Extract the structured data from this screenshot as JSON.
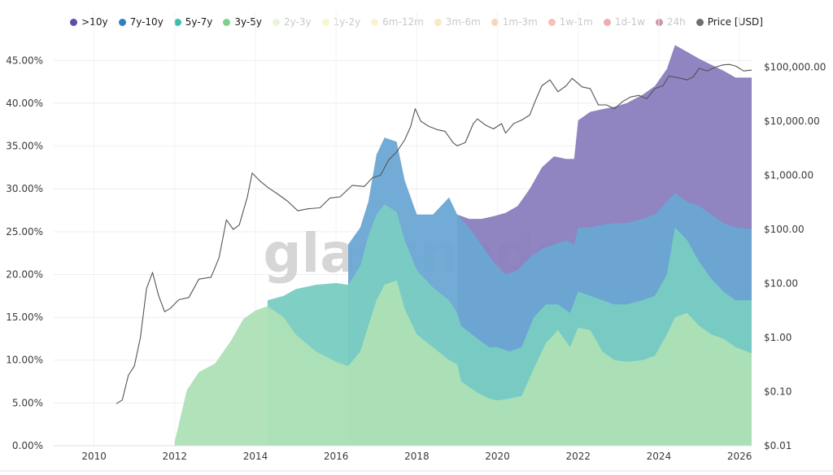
{
  "watermark": "glassnode",
  "legend": [
    {
      "label": ">10y",
      "color": "#5b4fa6",
      "active": true
    },
    {
      "label": "7y-10y",
      "color": "#2f80bf",
      "active": true
    },
    {
      "label": "5y-7y",
      "color": "#3dbfb0",
      "active": true
    },
    {
      "label": "3y-5y",
      "color": "#7fcf8f",
      "active": true
    },
    {
      "label": "2y-3y",
      "color": "#cfe8a8",
      "active": false
    },
    {
      "label": "1y-2y",
      "color": "#f1ee9a",
      "active": false
    },
    {
      "label": "6m-12m",
      "color": "#f6e3a0",
      "active": false
    },
    {
      "label": "3m-6m",
      "color": "#f5c97a",
      "active": false
    },
    {
      "label": "1m-3m",
      "color": "#f2a064",
      "active": false
    },
    {
      "label": "1w-1m",
      "color": "#e8735a",
      "active": false
    },
    {
      "label": "1d-1w",
      "color": "#d94a52",
      "active": false
    },
    {
      "label": "24h",
      "color": "#8c1232",
      "active": false
    },
    {
      "label": "Price [USD]",
      "color": "#6f6f6f",
      "active": true
    }
  ],
  "chart_data": {
    "type": "area",
    "stacked": true,
    "x_ticks": [
      "2010",
      "2012",
      "2014",
      "2016",
      "2018",
      "2020",
      "2022",
      "2024",
      "2026"
    ],
    "xlim": [
      2009.0,
      2026.3
    ],
    "y_left_ticks": [
      "0.00%",
      "5.00%",
      "10.00%",
      "15.00%",
      "20.00%",
      "25.00%",
      "30.00%",
      "35.00%",
      "40.00%",
      "45.00%"
    ],
    "ylim_left": [
      0,
      47.5
    ],
    "y_right_ticks": [
      "$0.01",
      "$0.10",
      "$1.00",
      "$10.00",
      "$100.00",
      "$1,000.00",
      "$10,000.00",
      "$100,000.00"
    ],
    "ylim_right": [
      0.01,
      330000
    ],
    "y_right_scale": "log",
    "grid": true,
    "legend_position": "top",
    "series": [
      {
        "name": "3y-5y",
        "color": "#aee0b6",
        "x": [
          2012.0,
          2012.3,
          2012.6,
          2013.0,
          2013.4,
          2013.7,
          2014.0,
          2014.3,
          2014.7,
          2015.0,
          2015.5,
          2016.0,
          2016.3,
          2016.6,
          2016.8,
          2017.0,
          2017.2,
          2017.5,
          2017.7,
          2018.0,
          2018.4,
          2018.8,
          2019.0,
          2019.1,
          2019.5,
          2019.8,
          2020.0,
          2020.3,
          2020.6,
          2020.9,
          2021.2,
          2021.5,
          2021.8,
          2022.0,
          2022.3,
          2022.6,
          2022.9,
          2023.2,
          2023.6,
          2023.9,
          2024.2,
          2024.4,
          2024.7,
          2025.0,
          2025.3,
          2025.6,
          2025.9,
          2026.3
        ],
        "values": [
          0.5,
          6.5,
          8.6,
          9.6,
          12.3,
          14.8,
          15.8,
          16.3,
          15.0,
          13.0,
          11.0,
          9.8,
          9.3,
          11.0,
          14.0,
          17.0,
          18.8,
          19.3,
          16.0,
          13.0,
          11.5,
          10.0,
          9.5,
          7.5,
          6.2,
          5.5,
          5.3,
          5.5,
          5.8,
          9.0,
          12.0,
          13.5,
          11.5,
          13.8,
          13.5,
          11.0,
          10.0,
          9.8,
          10.0,
          10.5,
          13.0,
          15.0,
          15.5,
          14.0,
          13.0,
          12.5,
          11.5,
          10.8
        ]
      },
      {
        "name": "5y-7y",
        "color": "#79ccc2",
        "x": [
          2014.3,
          2014.7,
          2015.0,
          2015.5,
          2016.0,
          2016.3,
          2016.6,
          2016.8,
          2017.0,
          2017.2,
          2017.5,
          2017.7,
          2018.0,
          2018.4,
          2018.8,
          2019.0,
          2019.1,
          2019.5,
          2019.8,
          2020.0,
          2020.3,
          2020.6,
          2020.9,
          2021.2,
          2021.5,
          2021.8,
          2022.0,
          2022.3,
          2022.6,
          2022.9,
          2023.2,
          2023.6,
          2023.9,
          2024.2,
          2024.4,
          2024.7,
          2025.0,
          2025.3,
          2025.6,
          2025.9,
          2026.3
        ],
        "values": [
          17.0,
          17.5,
          18.3,
          18.8,
          19.0,
          18.8,
          21.0,
          24.5,
          27.0,
          28.2,
          27.3,
          24.0,
          20.5,
          18.5,
          17.0,
          15.5,
          14.0,
          12.5,
          11.5,
          11.5,
          11.0,
          11.5,
          15.0,
          16.5,
          16.5,
          15.5,
          18.0,
          17.5,
          17.0,
          16.5,
          16.5,
          17.0,
          17.5,
          20.0,
          25.5,
          24.0,
          21.5,
          19.5,
          18.0,
          17.0,
          17.0
        ]
      },
      {
        "name": "7y-10y",
        "color": "#6aa7d3",
        "x": [
          2016.3,
          2016.6,
          2016.8,
          2017.0,
          2017.2,
          2017.5,
          2017.7,
          2018.0,
          2018.4,
          2018.8,
          2019.0,
          2019.3,
          2019.6,
          2019.9,
          2020.2,
          2020.5,
          2020.8,
          2021.1,
          2021.4,
          2021.7,
          2021.9,
          2022.0,
          2022.3,
          2022.6,
          2022.9,
          2023.2,
          2023.6,
          2023.9,
          2024.2,
          2024.4,
          2024.7,
          2025.0,
          2025.3,
          2025.6,
          2025.9,
          2026.3
        ],
        "values": [
          23.5,
          25.5,
          28.5,
          34.0,
          36.0,
          35.5,
          31.0,
          27.0,
          27.0,
          29.0,
          27.0,
          25.5,
          23.5,
          21.5,
          20.0,
          20.5,
          22.0,
          23.0,
          23.5,
          24.0,
          23.5,
          25.5,
          25.5,
          25.8,
          26.0,
          26.0,
          26.5,
          27.0,
          28.5,
          29.5,
          28.5,
          28.0,
          27.0,
          26.0,
          25.5,
          25.3
        ]
      },
      {
        "name": ">10y",
        "color": "#8a7dbe",
        "x": [
          2019.0,
          2019.3,
          2019.6,
          2019.9,
          2020.2,
          2020.5,
          2020.8,
          2021.1,
          2021.4,
          2021.7,
          2021.9,
          2022.0,
          2022.3,
          2022.6,
          2022.9,
          2023.2,
          2023.6,
          2023.9,
          2024.2,
          2024.4,
          2024.7,
          2025.0,
          2025.3,
          2025.6,
          2025.9,
          2026.3
        ],
        "values": [
          27.0,
          26.5,
          26.5,
          26.8,
          27.2,
          28.0,
          30.0,
          32.5,
          33.8,
          33.5,
          33.5,
          38.0,
          39.0,
          39.3,
          39.6,
          40.0,
          41.0,
          42.0,
          44.0,
          46.8,
          46.0,
          45.2,
          44.5,
          43.8,
          43.0,
          43.0
        ]
      }
    ],
    "price": {
      "name": "Price [USD]",
      "color": "#6f6f6f",
      "x": [
        2010.55,
        2010.7,
        2010.85,
        2011.0,
        2011.15,
        2011.3,
        2011.45,
        2011.6,
        2011.75,
        2011.9,
        2012.1,
        2012.35,
        2012.6,
        2012.9,
        2013.1,
        2013.28,
        2013.45,
        2013.6,
        2013.8,
        2013.92,
        2014.1,
        2014.3,
        2014.55,
        2014.8,
        2015.05,
        2015.3,
        2015.6,
        2015.85,
        2016.1,
        2016.4,
        2016.7,
        2016.9,
        2017.1,
        2017.3,
        2017.5,
        2017.7,
        2017.85,
        2017.96,
        2018.1,
        2018.3,
        2018.5,
        2018.7,
        2018.9,
        2019.0,
        2019.2,
        2019.4,
        2019.5,
        2019.7,
        2019.9,
        2020.1,
        2020.2,
        2020.4,
        2020.6,
        2020.8,
        2020.95,
        2021.1,
        2021.3,
        2021.5,
        2021.7,
        2021.85,
        2022.1,
        2022.3,
        2022.5,
        2022.7,
        2022.9,
        2023.1,
        2023.3,
        2023.5,
        2023.7,
        2023.9,
        2024.1,
        2024.25,
        2024.5,
        2024.7,
        2024.85,
        2025.0,
        2025.2,
        2025.4,
        2025.6,
        2025.75,
        2025.9,
        2026.1,
        2026.3
      ],
      "values": [
        0.06,
        0.07,
        0.2,
        0.3,
        1.0,
        8.0,
        16.0,
        6.0,
        3.0,
        3.5,
        5.0,
        5.5,
        12.0,
        13.0,
        30.0,
        150.0,
        100.0,
        120.0,
        400.0,
        1100.0,
        800.0,
        600.0,
        450.0,
        330.0,
        220.0,
        240.0,
        250.0,
        380.0,
        400.0,
        650.0,
        620.0,
        900.0,
        1000.0,
        1900.0,
        2700.0,
        4500.0,
        8000.0,
        17000.0,
        10000.0,
        8000.0,
        7000.0,
        6500.0,
        4000.0,
        3500.0,
        4000.0,
        9000.0,
        11000.0,
        8500.0,
        7200.0,
        9000.0,
        6000.0,
        9000.0,
        10500.0,
        13000.0,
        25000.0,
        45000.0,
        58000.0,
        35000.0,
        45000.0,
        62000.0,
        43000.0,
        40000.0,
        20000.0,
        20000.0,
        17000.0,
        23000.0,
        28000.0,
        30000.0,
        26000.0,
        40000.0,
        45000.0,
        68000.0,
        63000.0,
        58000.0,
        66000.0,
        95000.0,
        85000.0,
        100000.0,
        110000.0,
        112000.0,
        105000.0,
        85000.0,
        88000.0
      ]
    }
  }
}
